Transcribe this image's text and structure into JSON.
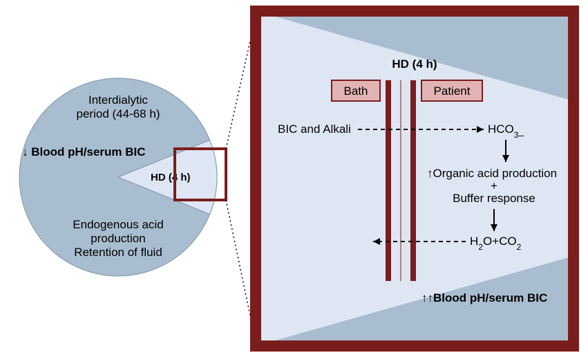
{
  "colors": {
    "circle_fill": "#a9bdd0",
    "wedge_fill": "#dfe6f3",
    "panel_fill": "#dfe6f3",
    "panel_tri": "#a9bdd0",
    "panel_border": "#7a1d1d",
    "small_box": "#7a1d1d",
    "membrane": "#7a1d1d",
    "bath_patient_fill": "#e2b3b3",
    "bath_patient_border": "#7a1d1d",
    "text": "#000000",
    "arrow": "#000000"
  },
  "circle": {
    "title_l1": "Interdialytic",
    "title_l2": "period (44-68 h)",
    "left_arrow": "↓",
    "left_l1": "Blood pH/serum BIC",
    "hd_label": "HD (4 h)",
    "bottom_l1": "Endogenous acid",
    "bottom_l2": "production",
    "bottom_l3": "Retention of fluid"
  },
  "panel": {
    "hd_title": "HD (4 h)",
    "bath": "Bath",
    "patient": "Patient",
    "left_top": "BIC and Alkali",
    "right_top": "HCO",
    "right_top_sub": "3",
    "right_top_sup": "–",
    "mid_arrow": "↑",
    "mid_l1": "Organic acid production",
    "mid_plus": "+",
    "mid_l2": "Buffer response",
    "right_bot": "H",
    "right_bot_sub1": "2",
    "right_bot_mid": "O+CO",
    "right_bot_sub2": "2",
    "bottom_arrow": "↑↑",
    "bottom_l": "Blood pH/serum BIC"
  },
  "font": {
    "body": 17,
    "bold": 17,
    "small": 15
  }
}
